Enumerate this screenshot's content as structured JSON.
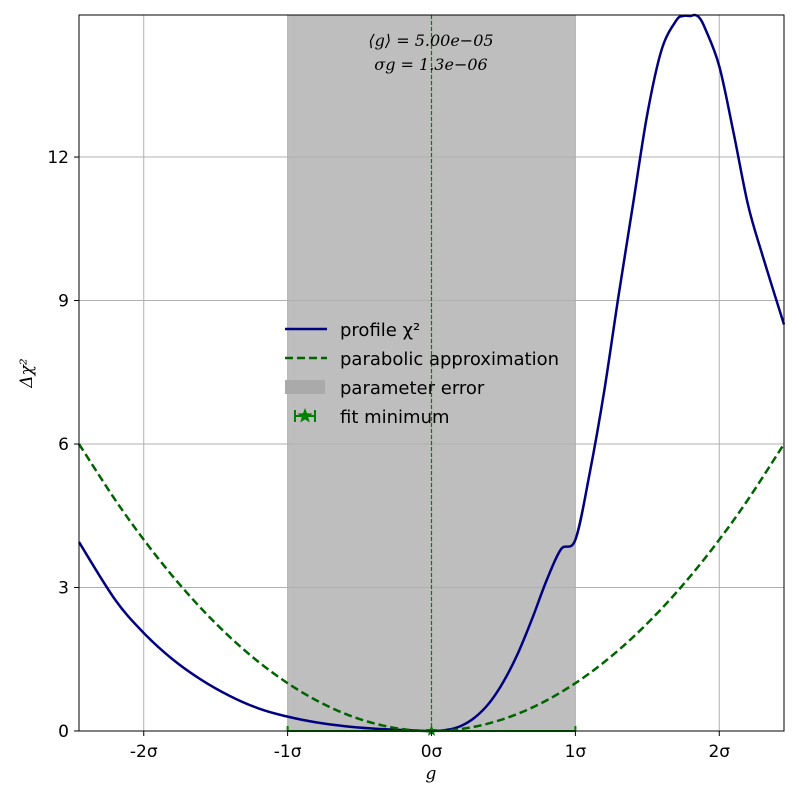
{
  "chart_data": {
    "type": "line",
    "xlabel": "g",
    "ylabel": "Δχ²",
    "xlim": [
      -2.45,
      2.45
    ],
    "ylim": [
      0,
      14.97
    ],
    "x_tick_values": [
      -2,
      -1,
      0,
      1,
      2
    ],
    "x_tick_labels": [
      "-2σ",
      "-1σ",
      "0σ",
      "1σ",
      "2σ"
    ],
    "y_tick_values": [
      0,
      3,
      6,
      9,
      12
    ],
    "y_tick_labels": [
      "0",
      "3",
      "6",
      "9",
      "12"
    ],
    "grid": true,
    "legend_position": "center-left",
    "annotation_lines": [
      "⟨g⟩ = 5.00e−05",
      "σg = 1.3e−06"
    ],
    "series": [
      {
        "name": "profile χ²",
        "style": "solid",
        "color": "#000080",
        "x": [
          -2.45,
          -2.2,
          -2.0,
          -1.8,
          -1.6,
          -1.4,
          -1.2,
          -1.0,
          -0.8,
          -0.6,
          -0.4,
          -0.2,
          0.0,
          0.1,
          0.2,
          0.3,
          0.4,
          0.5,
          0.6,
          0.7,
          0.8,
          0.9,
          1.0,
          1.1,
          1.2,
          1.3,
          1.4,
          1.5,
          1.6,
          1.7,
          1.75,
          1.8,
          1.83,
          1.86,
          1.9,
          2.0,
          2.1,
          2.2,
          2.3,
          2.45
        ],
        "y": [
          3.95,
          2.75,
          2.05,
          1.5,
          1.07,
          0.73,
          0.47,
          0.3,
          0.18,
          0.1,
          0.05,
          0.02,
          0.0,
          0.02,
          0.1,
          0.28,
          0.58,
          1.03,
          1.62,
          2.35,
          3.15,
          3.8,
          4.0,
          5.4,
          7.1,
          9.1,
          11.0,
          12.9,
          14.25,
          14.85,
          14.95,
          14.95,
          14.97,
          14.92,
          14.7,
          13.9,
          12.5,
          11.0,
          9.95,
          8.5
        ]
      },
      {
        "name": "parabolic approximation",
        "style": "dashed",
        "color": "#006400",
        "x": [
          -2.45,
          -2.2,
          -2.0,
          -1.8,
          -1.6,
          -1.4,
          -1.2,
          -1.0,
          -0.8,
          -0.6,
          -0.4,
          -0.2,
          0.0,
          0.2,
          0.4,
          0.6,
          0.8,
          1.0,
          1.2,
          1.4,
          1.6,
          1.8,
          2.0,
          2.2,
          2.45
        ],
        "y": [
          6.0,
          4.84,
          4.0,
          3.24,
          2.56,
          1.96,
          1.44,
          1.0,
          0.64,
          0.36,
          0.16,
          0.04,
          0.0,
          0.04,
          0.16,
          0.36,
          0.64,
          1.0,
          1.44,
          1.96,
          2.56,
          3.24,
          4.0,
          4.84,
          6.0
        ]
      }
    ],
    "error_band": {
      "name": "parameter error",
      "x_range": [
        -1,
        1
      ],
      "color": "#aaaaaa"
    },
    "fit_minimum": {
      "name": "fit minimum",
      "x": 0,
      "y": 0,
      "xerr": 1,
      "color": "#008000"
    }
  }
}
